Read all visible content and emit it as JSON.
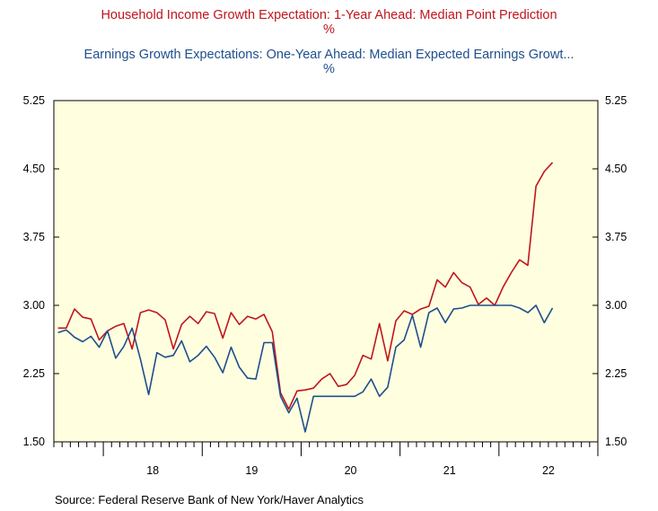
{
  "chart_data": {
    "type": "line",
    "titles": [
      {
        "text": "Household Income Growth Expectation: 1-Year Ahead: Median Point Prediction",
        "unit": "%",
        "color": "#c0151b"
      },
      {
        "text": "Earnings Growth Expectations: One-Year Ahead: Median Expected Earnings Growt...",
        "unit": "%",
        "color": "#1f4e8c"
      }
    ],
    "ylim": [
      1.5,
      5.25
    ],
    "yticks": [
      "5.25",
      "4.50",
      "3.75",
      "3.00",
      "2.25",
      "1.50"
    ],
    "yticks_values": [
      5.25,
      4.5,
      3.75,
      3.0,
      2.25,
      1.5
    ],
    "x_start": "2017-07",
    "x_end": "2022-12",
    "year_labels": [
      "18",
      "19",
      "20",
      "21",
      "22"
    ],
    "grid": false,
    "plot_background": "#ffffe0",
    "series": [
      {
        "color": "#c0151b",
        "values": [
          2.75,
          2.75,
          2.96,
          2.87,
          2.85,
          2.62,
          2.72,
          2.77,
          2.8,
          2.52,
          2.92,
          2.95,
          2.92,
          2.84,
          2.52,
          2.79,
          2.88,
          2.8,
          2.93,
          2.91,
          2.64,
          2.92,
          2.79,
          2.88,
          2.85,
          2.9,
          2.71,
          2.04,
          1.86,
          2.06,
          2.07,
          2.09,
          2.19,
          2.25,
          2.11,
          2.13,
          2.23,
          2.45,
          2.41,
          2.8,
          2.39,
          2.83,
          2.94,
          2.9,
          2.96,
          2.99,
          3.28,
          3.2,
          3.36,
          3.25,
          3.2,
          3.01,
          3.08,
          3.0,
          3.2,
          3.36,
          3.5,
          3.44,
          4.31,
          4.47,
          4.57
        ]
      },
      {
        "color": "#1f4e8c",
        "values": [
          2.7,
          2.73,
          2.65,
          2.6,
          2.66,
          2.54,
          2.72,
          2.42,
          2.55,
          2.75,
          2.41,
          2.02,
          2.48,
          2.43,
          2.45,
          2.61,
          2.38,
          2.45,
          2.55,
          2.43,
          2.26,
          2.54,
          2.32,
          2.2,
          2.19,
          2.59,
          2.59,
          2.0,
          1.82,
          1.98,
          1.61,
          2.0,
          2.0,
          2.0,
          2.0,
          2.0,
          2.0,
          2.05,
          2.19,
          2.0,
          2.1,
          2.54,
          2.62,
          2.89,
          2.54,
          2.92,
          2.97,
          2.81,
          2.96,
          2.97,
          3.0,
          3.0,
          3.0,
          3.0,
          3.0,
          3.0,
          2.97,
          2.92,
          3.0,
          2.81,
          2.97
        ]
      }
    ],
    "source": "Source:  Federal Reserve Bank of New York/Haver Analytics"
  }
}
